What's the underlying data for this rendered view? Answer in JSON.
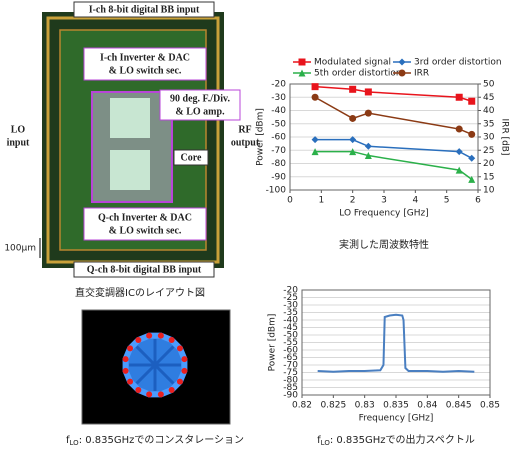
{
  "layout": {
    "top_label": "I-ch 8-bit digital BB input",
    "bottom_label": "Q-ch 8-bit digital BB input",
    "ich_block": [
      "I-ch Inverter & DAC",
      "& LO switch sec."
    ],
    "qch_block": [
      "Q-ch Inverter & DAC",
      "& LO switch sec."
    ],
    "div_block": [
      "90 deg. F./Div.",
      "& LO amp."
    ],
    "lo_input": [
      "LO",
      "input"
    ],
    "rf_output": [
      "RF",
      "output"
    ],
    "core": "Core",
    "scale": "100µm",
    "layout_caption": "直交変調器ICのレイアウト図",
    "constellation_caption": {
      "f": "f",
      "sub": "LO",
      "text": ": 0.835GHzでのコンスタレーション"
    }
  },
  "chart_data": [
    {
      "type": "line",
      "caption": "実測した周波数特性",
      "xlabel": "LO Frequency [GHz]",
      "ylabel": "Power [dBm]",
      "y2label": "IRR [dB]",
      "x": [
        0.8,
        2.0,
        2.5,
        5.4,
        5.8
      ],
      "xlim": [
        0,
        6
      ],
      "xticks": [
        0,
        1,
        2,
        3,
        4,
        5,
        6
      ],
      "ylim": [
        -100,
        -20
      ],
      "yticks": [
        -100,
        -90,
        -80,
        -70,
        -60,
        -50,
        -40,
        -30,
        -20
      ],
      "y2lim": [
        10,
        50
      ],
      "y2ticks": [
        10,
        15,
        20,
        25,
        30,
        35,
        40,
        45,
        50
      ],
      "grid": true,
      "series": [
        {
          "name": "Modulated signal",
          "color": "#e8141c",
          "marker": "square",
          "values": [
            -22,
            -24,
            -26,
            -30,
            -33
          ]
        },
        {
          "name": "3rd order distortion",
          "color": "#2a6fbd",
          "marker": "diamond",
          "values": [
            -62,
            -62,
            -67,
            -71,
            -76
          ]
        },
        {
          "name": "5th order distortion",
          "color": "#2bb04a",
          "marker": "triangle",
          "values": [
            -71,
            -71,
            -74,
            -85,
            -92
          ]
        },
        {
          "name": "IRR",
          "color": "#8b3a14",
          "marker": "circle",
          "axis": "y2",
          "values": [
            45,
            37,
            39,
            33,
            31
          ]
        }
      ]
    },
    {
      "type": "line",
      "caption": {
        "f": "f",
        "sub": "LO",
        "text": ": 0.835GHzでの出力スペクトル"
      },
      "xlabel": "Frequency [GHz]",
      "ylabel": "Power [dBm]",
      "x": [
        0.8225,
        0.825,
        0.8275,
        0.83,
        0.8325,
        0.833,
        0.8332,
        0.834,
        0.835,
        0.836,
        0.8362,
        0.8365,
        0.837,
        0.84,
        0.8425,
        0.845,
        0.8475
      ],
      "xlim": [
        0.82,
        0.85
      ],
      "xticks": [
        0.82,
        0.825,
        0.83,
        0.835,
        0.84,
        0.845,
        0.85
      ],
      "ylim": [
        -90,
        -20
      ],
      "yticks": [
        -90,
        -85,
        -80,
        -75,
        -70,
        -65,
        -60,
        -55,
        -50,
        -45,
        -40,
        -35,
        -30,
        -25,
        -20
      ],
      "grid": true,
      "series": [
        {
          "color": "#4a7fc1",
          "values": [
            -74,
            -74.5,
            -74,
            -74,
            -73.5,
            -70,
            -38,
            -37,
            -36.5,
            -37,
            -40,
            -72,
            -74,
            -74,
            -74.5,
            -74,
            -74.5
          ]
        }
      ]
    }
  ]
}
